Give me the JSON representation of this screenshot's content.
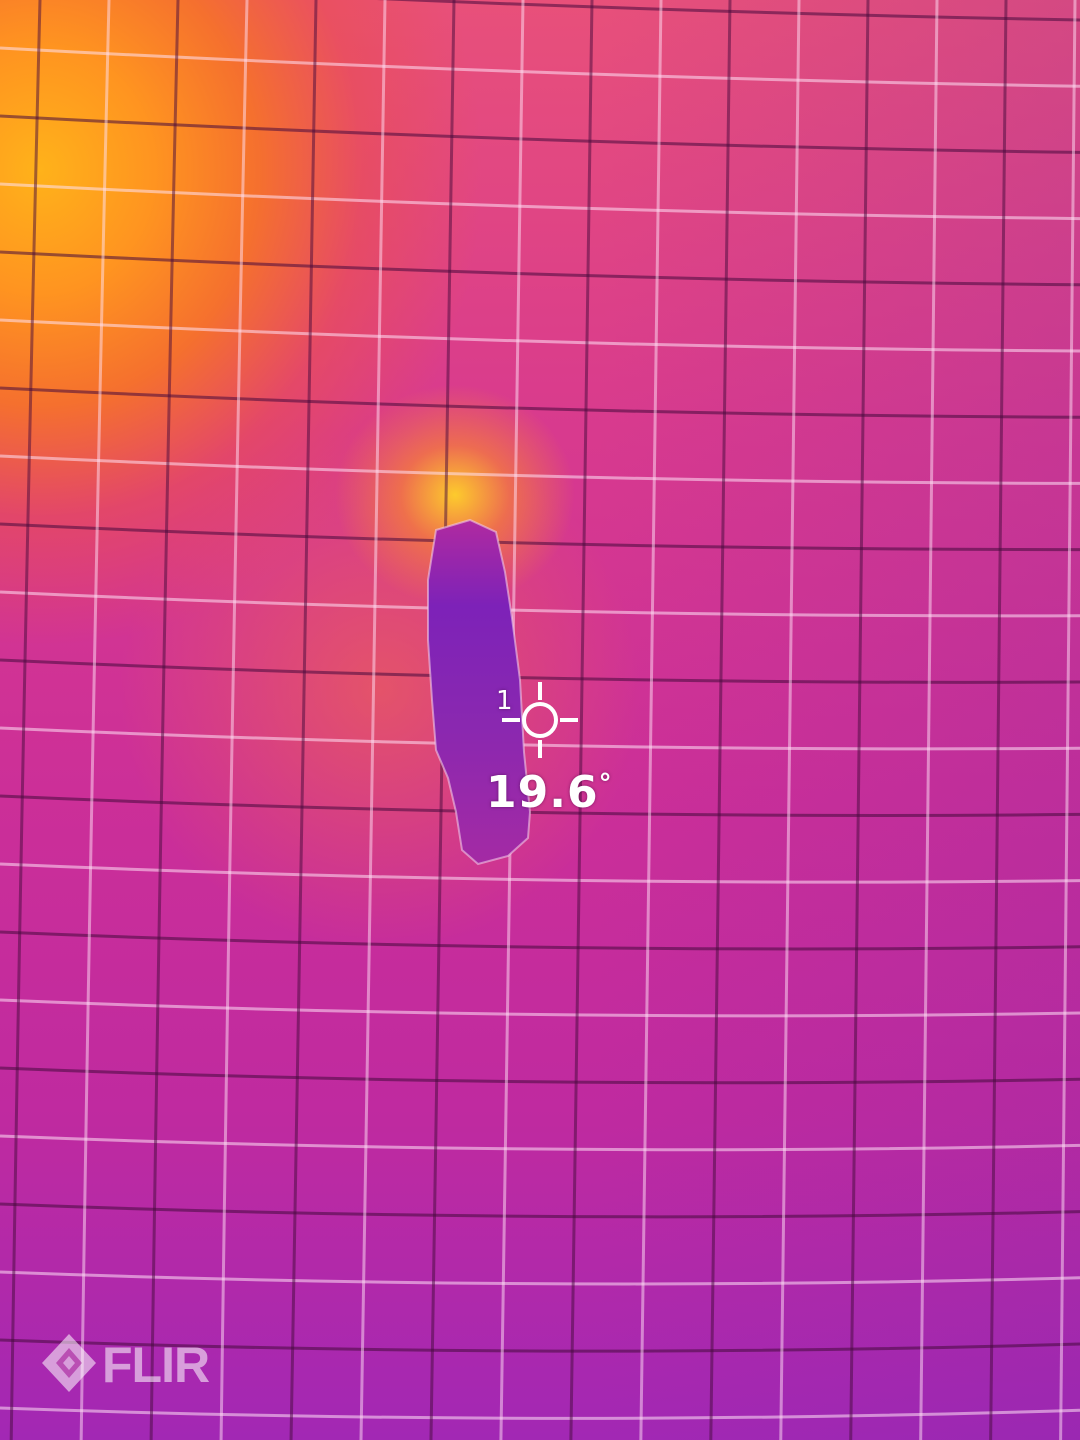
{
  "measurement": {
    "spot_index": "1",
    "temperature": "19.6",
    "unit": "°"
  },
  "brand": {
    "logo_text": "FLIR"
  },
  "colors": {
    "hot": "#ffb21a",
    "warm": "#f5702e",
    "mid": "#d83a8e",
    "cool": "#a228b4",
    "overlay_text": "#ffffff"
  },
  "icons": {
    "spot_meter": "crosshair-icon",
    "brand": "flir-logo-icon"
  }
}
